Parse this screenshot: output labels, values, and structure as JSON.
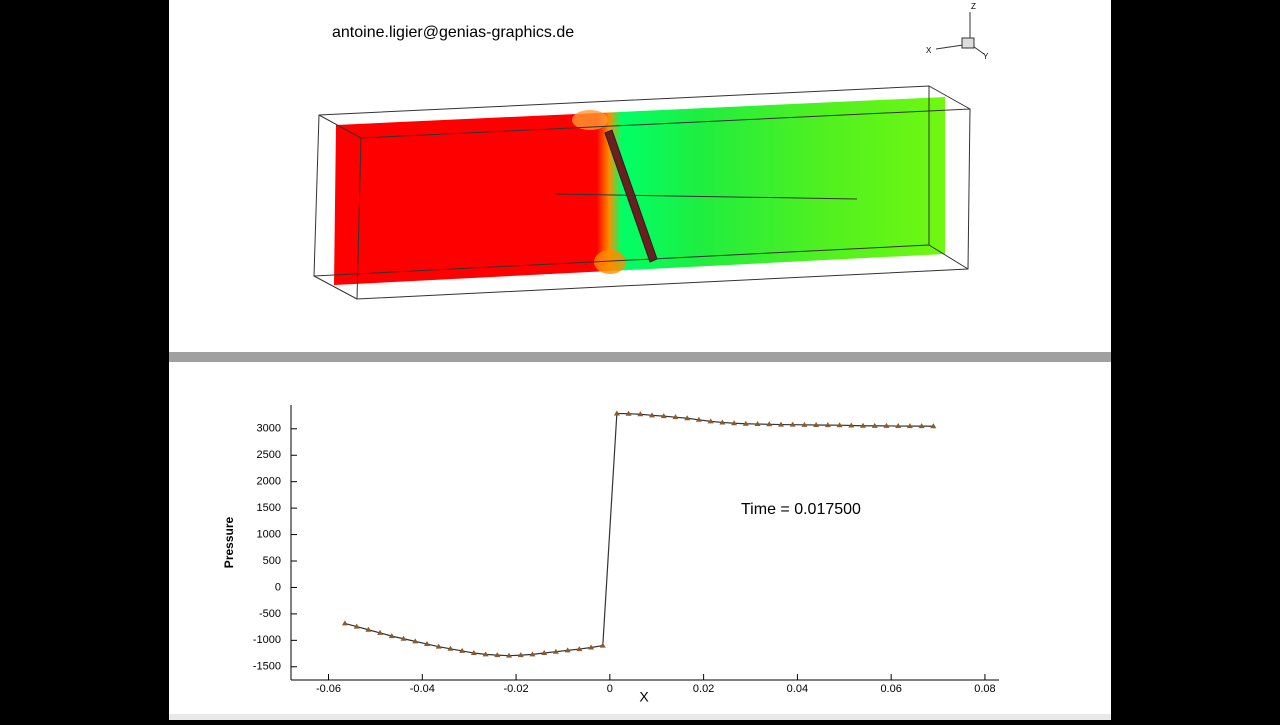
{
  "header": {
    "email": "antoine.ligier@genias-graphics.de",
    "triad": [
      "Z",
      "X",
      "Y"
    ]
  },
  "chart_data": {
    "type": "line",
    "xlabel": "X",
    "ylabel": "Pressure",
    "annotation": "Time = 0.017500",
    "xlim": [
      -0.068,
      0.083
    ],
    "xticks": [
      -0.06,
      -0.04,
      -0.02,
      0,
      0.02,
      0.04,
      0.06,
      0.08
    ],
    "ylim": [
      -1750,
      3450
    ],
    "yticks": [
      -1500,
      -1000,
      -500,
      0,
      500,
      1000,
      1500,
      2000,
      2500,
      3000
    ],
    "x": [
      -0.0565,
      -0.054,
      -0.0515,
      -0.049,
      -0.0465,
      -0.044,
      -0.0415,
      -0.039,
      -0.0365,
      -0.034,
      -0.0315,
      -0.029,
      -0.0265,
      -0.024,
      -0.0215,
      -0.019,
      -0.0165,
      -0.014,
      -0.0115,
      -0.009,
      -0.0065,
      -0.004,
      -0.0015,
      0.0015,
      0.004,
      0.0065,
      0.009,
      0.0115,
      0.014,
      0.0165,
      0.019,
      0.0215,
      0.024,
      0.0265,
      0.029,
      0.0315,
      0.034,
      0.0365,
      0.039,
      0.0415,
      0.044,
      0.0465,
      0.049,
      0.0515,
      0.054,
      0.0565,
      0.059,
      0.0615,
      0.064,
      0.0665,
      0.069
    ],
    "series": [
      {
        "color": "#333333",
        "marker_color": "#8b5a2b",
        "values": [
          -680,
          -740,
          -800,
          -860,
          -920,
          -970,
          -1020,
          -1070,
          -1120,
          -1160,
          -1200,
          -1240,
          -1265,
          -1280,
          -1290,
          -1280,
          -1265,
          -1240,
          -1215,
          -1190,
          -1165,
          -1135,
          -1100,
          3290,
          3285,
          3275,
          3255,
          3240,
          3220,
          3200,
          3170,
          3140,
          3120,
          3105,
          3095,
          3090,
          3085,
          3080,
          3078,
          3075,
          3072,
          3070,
          3068,
          3062,
          3058,
          3055,
          3055,
          3052,
          3050,
          3050,
          3048
        ]
      }
    ]
  }
}
